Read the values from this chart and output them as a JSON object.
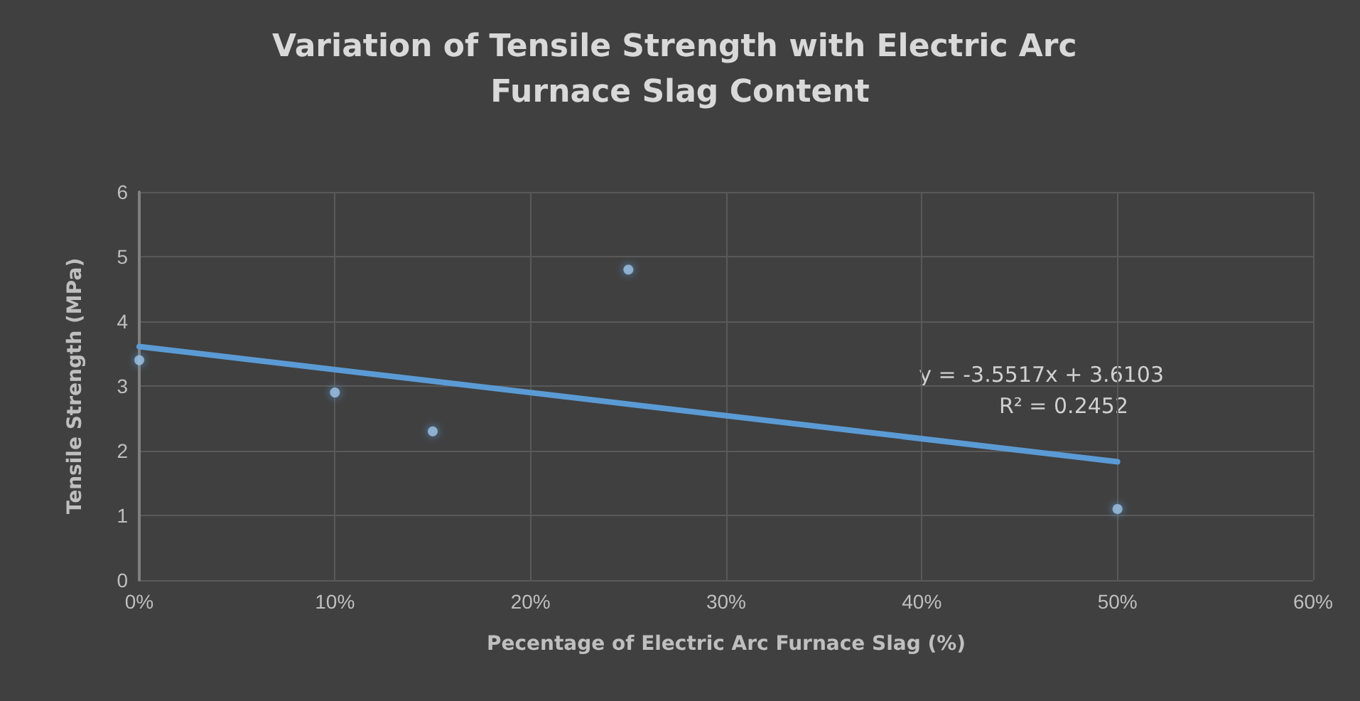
{
  "chart_data": {
    "type": "scatter",
    "title": "Variation of Tensile Strength with Electric Arc Furnace Slag Content",
    "xlabel": "Pecentage of Electric Arc Furnace Slag (%)",
    "ylabel": "Tensile Strength (MPa)",
    "series": [
      {
        "marker": "circle",
        "color": "#9dc3e6",
        "x": [
          0,
          10,
          15,
          25,
          50
        ],
        "values": [
          3.4,
          2.9,
          2.3,
          4.8,
          1.1
        ]
      },
      {
        "type": "line",
        "marker": "none",
        "color": "#5b9bd5",
        "x": [
          0,
          50
        ],
        "values": [
          3.61,
          1.83
        ]
      }
    ],
    "xlim": [
      0,
      60
    ],
    "xticks": [
      {
        "value": 0,
        "label": "0%"
      },
      {
        "value": 10,
        "label": "10%"
      },
      {
        "value": 20,
        "label": "20%"
      },
      {
        "value": 30,
        "label": "30%"
      },
      {
        "value": 40,
        "label": "40%"
      },
      {
        "value": 50,
        "label": "50%"
      },
      {
        "value": 60,
        "label": "60%"
      }
    ],
    "ylim": [
      0,
      6
    ],
    "yticks": [
      0,
      1,
      2,
      3,
      4,
      5,
      6
    ],
    "annotations": [
      "y = -3.5517x + 3.6103",
      "R² = 0.2452"
    ],
    "grid": true,
    "line_style": "solid"
  }
}
